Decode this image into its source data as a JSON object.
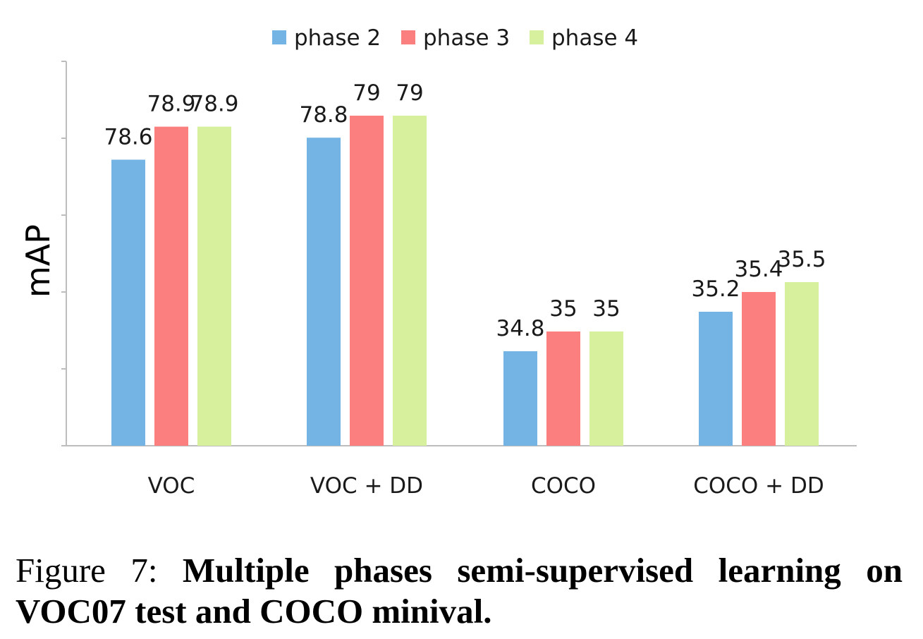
{
  "chart_data": {
    "type": "bar",
    "categories": [
      "VOC",
      "VOC + DD",
      "COCO",
      "COCO + DD"
    ],
    "series": [
      {
        "name": "phase 2",
        "color": "#74b4e4",
        "data_labels": [
          "78.6",
          "78.8",
          "34.8",
          "35.2"
        ],
        "values": [
          78.6,
          78.8,
          34.8,
          35.2
        ]
      },
      {
        "name": "phase 3",
        "color": "#fb7f7e",
        "data_labels": [
          "78.9",
          "79",
          "35",
          "35.4"
        ],
        "values": [
          78.9,
          79.0,
          35.0,
          35.4
        ]
      },
      {
        "name": "phase 4",
        "color": "#d6f09e",
        "data_labels": [
          "78.9",
          "79",
          "35",
          "35.5"
        ],
        "values": [
          78.9,
          79.0,
          35.0,
          35.5
        ]
      }
    ],
    "ylabel": "mAP",
    "y_tick_labels_shown": false,
    "legend_position": "top-center",
    "grid": false
  },
  "caption": {
    "label": "Figure 7:",
    "text": "Multiple phases semi-supervised learning on VOC07 test and COCO minival."
  }
}
